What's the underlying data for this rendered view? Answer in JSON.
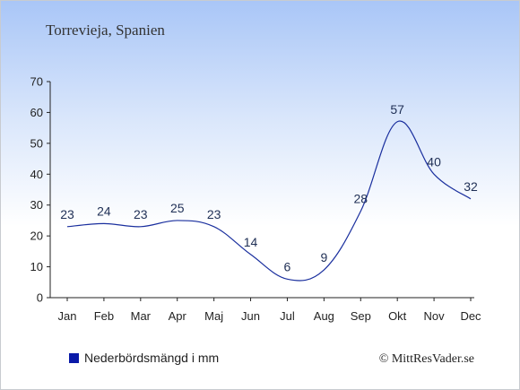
{
  "chart_data": {
    "type": "line",
    "title": "Torrevieja, Spanien",
    "categories": [
      "Jan",
      "Feb",
      "Mar",
      "Apr",
      "Maj",
      "Jun",
      "Jul",
      "Aug",
      "Sep",
      "Okt",
      "Nov",
      "Dec"
    ],
    "series": [
      {
        "name": "Nederbördsmängd i mm",
        "values": [
          23,
          24,
          23,
          25,
          23,
          14,
          6,
          9,
          28,
          57,
          40,
          32
        ]
      }
    ],
    "ylim": [
      0,
      70
    ],
    "yticks": [
      0,
      10,
      20,
      30,
      40,
      50,
      60,
      70
    ],
    "grid": false,
    "legend_position": "bottom-left",
    "line_color": "#1a2f9e",
    "legend_color": "#0a1aa8"
  },
  "credit": "© MittResVader.se"
}
